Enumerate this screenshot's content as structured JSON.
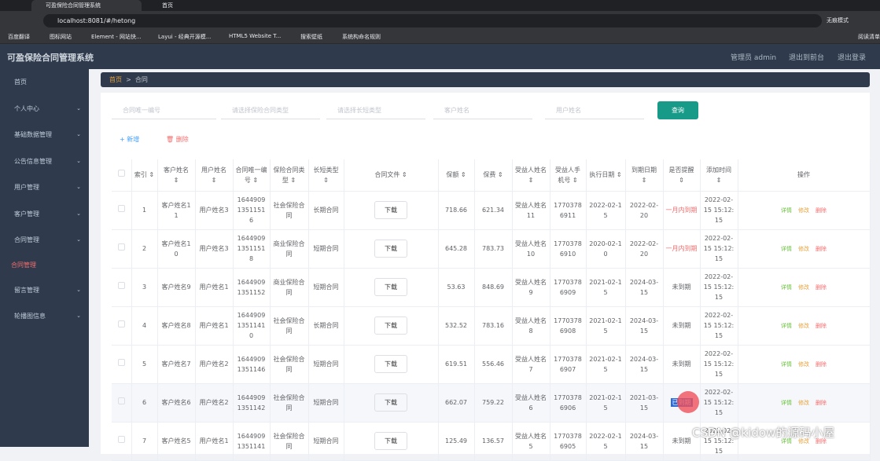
{
  "browser": {
    "tabs": [
      "可盈保险合同管理系统",
      "首页"
    ],
    "url": "localhost:8081/#/hetong",
    "incognito": "无痕模式",
    "reading_list": "阅读清单",
    "bookmarks": [
      "百度翻译",
      "图标网站",
      "Element - 网站快...",
      "Layui - 经典开源模...",
      "HTML5 Website T...",
      "搜索壁纸",
      "系统构命名规则"
    ]
  },
  "header": {
    "title": "可盈保险合同管理系统",
    "user": "管理员 admin",
    "front": "退出到前台",
    "logout": "退出登录"
  },
  "sidebar": [
    "首页",
    "个人中心",
    "基础数据管理",
    "公告信息管理",
    "用户管理",
    "客户管理",
    "合同管理",
    "合同管理",
    "留言管理",
    "轮播图信息"
  ],
  "breadcrumb": [
    "首页",
    "合同"
  ],
  "search": {
    "placeholders": [
      "合同唯一编号",
      "请选择保险合同类型",
      "请选择长短类型",
      "客户姓名",
      "用户姓名"
    ],
    "button": "查询"
  },
  "toolbar": {
    "add": "新增",
    "delete": "删除"
  },
  "table": {
    "headers": [
      "索引",
      "客户姓名",
      "用户姓名",
      "合同唯一编号",
      "保险合同类型",
      "长短类型",
      "合同文件",
      "保额",
      "保费",
      "受益人姓名",
      "受益人手机号",
      "执行日期",
      "到期日期",
      "是否提醒",
      "添加时间",
      "操作"
    ],
    "download": "下载",
    "actions": [
      "详情",
      "修改",
      "删除"
    ],
    "rows": [
      [
        "1",
        "客户姓名11",
        "用户姓名3",
        "164490913511516",
        "社会保险合同",
        "长期合同",
        "718.66",
        "621.34",
        "受益人姓名11",
        "17703786911",
        "2022-02-15",
        "2022-02-20",
        "一月内到期",
        "2022-02-15 15:12:15"
      ],
      [
        "2",
        "客户姓名10",
        "用户姓名3",
        "164490913511518",
        "商业保险合同",
        "短期合同",
        "645.28",
        "783.73",
        "受益人姓名10",
        "17703786910",
        "2020-02-10",
        "2022-02-20",
        "一月内到期",
        "2022-02-15 15:12:15"
      ],
      [
        "3",
        "客户姓名9",
        "用户姓名1",
        "16449091351152",
        "商业保险合同",
        "短期合同",
        "53.63",
        "848.69",
        "受益人姓名9",
        "17703786909",
        "2021-02-15",
        "2024-03-15",
        "未到期",
        "2022-02-15 15:12:15"
      ],
      [
        "4",
        "客户姓名8",
        "用户姓名1",
        "164490913511410",
        "社会保险合同",
        "长期合同",
        "532.52",
        "783.16",
        "受益人姓名8",
        "17703786908",
        "2021-02-15",
        "2024-03-15",
        "未到期",
        "2022-02-15 15:12:15"
      ],
      [
        "5",
        "客户姓名7",
        "用户姓名2",
        "16449091351146",
        "社会保险合同",
        "短期合同",
        "619.51",
        "556.46",
        "受益人姓名7",
        "17703786907",
        "2021-02-15",
        "2024-03-15",
        "未到期",
        "2022-02-15 15:12:15"
      ],
      [
        "6",
        "客户姓名6",
        "用户姓名2",
        "16449091351142",
        "社会保险合同",
        "短期合同",
        "662.07",
        "759.22",
        "受益人姓名6",
        "17703786906",
        "2021-02-15",
        "2021-03-15",
        "已到期",
        "2022-02-15 15:12:15"
      ],
      [
        "7",
        "客户姓名5",
        "用户姓名1",
        "16449091351141",
        "社会保险合同",
        "短期合同",
        "125.49",
        "136.57",
        "受益人姓名5",
        "17703786905",
        "2022-02-15",
        "2024-03-15",
        "未到期",
        "2022-02-15 15:12:15"
      ]
    ]
  },
  "watermark": "CSDN @kidow的源码小屋"
}
